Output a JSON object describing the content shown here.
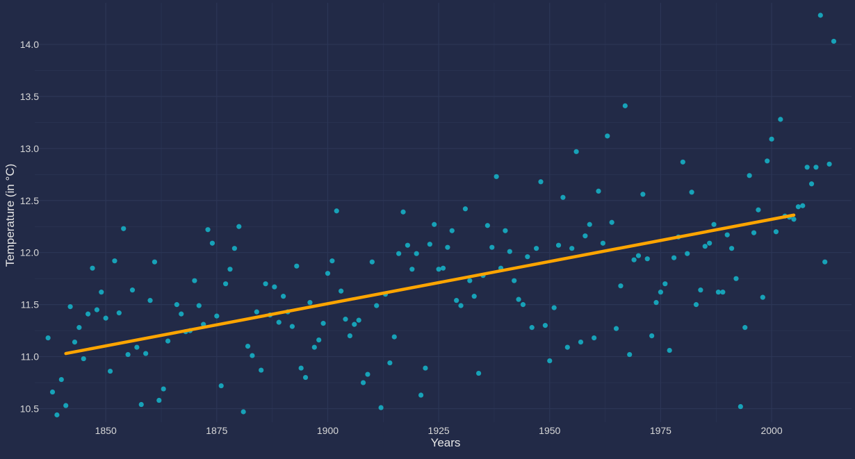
{
  "chart_data": {
    "type": "scatter",
    "title": "",
    "xlabel": "Years",
    "ylabel": "Temperature (in °C)",
    "xlim": [
      1834,
      2018
    ],
    "ylim": [
      10.37,
      14.4
    ],
    "grid": true,
    "legend": "none",
    "x_ticks": [
      1850,
      1875,
      1900,
      1925,
      1950,
      1975,
      2000
    ],
    "x_tick_labels": [
      "1850",
      "1875",
      "1900",
      "1925",
      "1950",
      "1975",
      "2000"
    ],
    "y_ticks": [
      10.5,
      11.0,
      11.5,
      12.0,
      12.5,
      13.0,
      13.5,
      14.0
    ],
    "y_tick_labels": [
      "10.5",
      "11.0",
      "11.5",
      "12.0",
      "12.5",
      "13.0",
      "13.5",
      "14.0"
    ],
    "colors": {
      "background": "#222a47",
      "grid": "#2c3656",
      "points": "#17a2b8",
      "trend": "#ffa500",
      "text": "#e6e6e6"
    },
    "points": [
      [
        1837,
        11.18
      ],
      [
        1838,
        10.66
      ],
      [
        1839,
        10.44
      ],
      [
        1840,
        10.78
      ],
      [
        1841,
        10.53
      ],
      [
        1842,
        11.48
      ],
      [
        1843,
        11.14
      ],
      [
        1844,
        11.28
      ],
      [
        1845,
        10.98
      ],
      [
        1846,
        11.41
      ],
      [
        1847,
        11.85
      ],
      [
        1848,
        11.45
      ],
      [
        1849,
        11.62
      ],
      [
        1850,
        11.37
      ],
      [
        1851,
        10.86
      ],
      [
        1852,
        11.92
      ],
      [
        1853,
        11.42
      ],
      [
        1854,
        12.23
      ],
      [
        1855,
        11.02
      ],
      [
        1856,
        11.64
      ],
      [
        1857,
        11.09
      ],
      [
        1858,
        10.54
      ],
      [
        1859,
        11.03
      ],
      [
        1860,
        11.54
      ],
      [
        1861,
        11.91
      ],
      [
        1862,
        10.58
      ],
      [
        1863,
        10.69
      ],
      [
        1864,
        11.15
      ],
      [
        1866,
        11.5
      ],
      [
        1867,
        11.41
      ],
      [
        1868,
        11.24
      ],
      [
        1869,
        11.25
      ],
      [
        1870,
        11.73
      ],
      [
        1871,
        11.49
      ],
      [
        1872,
        11.31
      ],
      [
        1873,
        12.22
      ],
      [
        1874,
        12.09
      ],
      [
        1875,
        11.39
      ],
      [
        1876,
        10.72
      ],
      [
        1877,
        11.7
      ],
      [
        1878,
        11.84
      ],
      [
        1879,
        12.04
      ],
      [
        1880,
        12.25
      ],
      [
        1881,
        10.47
      ],
      [
        1882,
        11.1
      ],
      [
        1883,
        11.01
      ],
      [
        1884,
        11.43
      ],
      [
        1885,
        10.87
      ],
      [
        1886,
        11.7
      ],
      [
        1887,
        11.4
      ],
      [
        1888,
        11.67
      ],
      [
        1889,
        11.33
      ],
      [
        1890,
        11.58
      ],
      [
        1891,
        11.43
      ],
      [
        1892,
        11.29
      ],
      [
        1893,
        11.87
      ],
      [
        1894,
        10.89
      ],
      [
        1895,
        10.8
      ],
      [
        1896,
        11.52
      ],
      [
        1897,
        11.09
      ],
      [
        1898,
        11.16
      ],
      [
        1899,
        11.32
      ],
      [
        1900,
        11.8
      ],
      [
        1901,
        11.92
      ],
      [
        1902,
        12.4
      ],
      [
        1903,
        11.63
      ],
      [
        1904,
        11.36
      ],
      [
        1905,
        11.2
      ],
      [
        1906,
        11.31
      ],
      [
        1907,
        11.35
      ],
      [
        1908,
        10.75
      ],
      [
        1909,
        10.83
      ],
      [
        1910,
        11.91
      ],
      [
        1911,
        11.49
      ],
      [
        1912,
        10.51
      ],
      [
        1913,
        11.6
      ],
      [
        1914,
        10.94
      ],
      [
        1915,
        11.19
      ],
      [
        1916,
        11.99
      ],
      [
        1917,
        12.39
      ],
      [
        1918,
        12.07
      ],
      [
        1919,
        11.84
      ],
      [
        1920,
        11.99
      ],
      [
        1921,
        10.63
      ],
      [
        1922,
        10.89
      ],
      [
        1923,
        12.08
      ],
      [
        1924,
        12.27
      ],
      [
        1925,
        11.84
      ],
      [
        1926,
        11.85
      ],
      [
        1927,
        12.05
      ],
      [
        1928,
        12.21
      ],
      [
        1929,
        11.54
      ],
      [
        1930,
        11.49
      ],
      [
        1931,
        12.42
      ],
      [
        1932,
        11.73
      ],
      [
        1933,
        11.58
      ],
      [
        1934,
        10.84
      ],
      [
        1935,
        11.78
      ],
      [
        1936,
        12.26
      ],
      [
        1937,
        12.05
      ],
      [
        1938,
        12.73
      ],
      [
        1939,
        11.85
      ],
      [
        1940,
        12.21
      ],
      [
        1941,
        12.01
      ],
      [
        1942,
        11.73
      ],
      [
        1943,
        11.55
      ],
      [
        1944,
        11.5
      ],
      [
        1945,
        11.96
      ],
      [
        1946,
        11.28
      ],
      [
        1947,
        12.04
      ],
      [
        1948,
        12.68
      ],
      [
        1949,
        11.3
      ],
      [
        1950,
        10.96
      ],
      [
        1951,
        11.47
      ],
      [
        1952,
        12.07
      ],
      [
        1953,
        12.53
      ],
      [
        1954,
        11.09
      ],
      [
        1955,
        12.04
      ],
      [
        1956,
        12.97
      ],
      [
        1957,
        11.14
      ],
      [
        1958,
        12.16
      ],
      [
        1959,
        12.27
      ],
      [
        1960,
        11.18
      ],
      [
        1961,
        12.59
      ],
      [
        1962,
        12.09
      ],
      [
        1963,
        13.12
      ],
      [
        1964,
        12.29
      ],
      [
        1965,
        11.27
      ],
      [
        1966,
        11.68
      ],
      [
        1967,
        13.41
      ],
      [
        1968,
        11.02
      ],
      [
        1969,
        11.93
      ],
      [
        1970,
        11.97
      ],
      [
        1971,
        12.56
      ],
      [
        1972,
        11.94
      ],
      [
        1973,
        11.2
      ],
      [
        1974,
        11.52
      ],
      [
        1975,
        11.62
      ],
      [
        1976,
        11.7
      ],
      [
        1977,
        11.06
      ],
      [
        1978,
        11.95
      ],
      [
        1979,
        12.15
      ],
      [
        1980,
        12.87
      ],
      [
        1981,
        11.99
      ],
      [
        1982,
        12.58
      ],
      [
        1983,
        11.5
      ],
      [
        1984,
        11.64
      ],
      [
        1985,
        12.06
      ],
      [
        1986,
        12.09
      ],
      [
        1987,
        12.27
      ],
      [
        1988,
        11.62
      ],
      [
        1989,
        11.62
      ],
      [
        1990,
        12.17
      ],
      [
        1991,
        12.04
      ],
      [
        1992,
        11.75
      ],
      [
        1993,
        10.52
      ],
      [
        1994,
        11.28
      ],
      [
        1995,
        12.74
      ],
      [
        1996,
        12.19
      ],
      [
        1997,
        12.41
      ],
      [
        1998,
        11.57
      ],
      [
        1999,
        12.88
      ],
      [
        2000,
        13.09
      ],
      [
        2001,
        12.2
      ],
      [
        2002,
        13.28
      ],
      [
        2003,
        12.35
      ],
      [
        2004,
        12.34
      ],
      [
        2005,
        12.32
      ],
      [
        2006,
        12.44
      ],
      [
        2007,
        12.45
      ],
      [
        2008,
        12.82
      ],
      [
        2009,
        12.66
      ],
      [
        2010,
        12.82
      ],
      [
        2011,
        14.28
      ],
      [
        2012,
        11.91
      ],
      [
        2013,
        12.85
      ],
      [
        2014,
        14.03
      ]
    ],
    "trend": {
      "x": [
        1841,
        2005
      ],
      "y": [
        11.03,
        12.36
      ]
    }
  }
}
